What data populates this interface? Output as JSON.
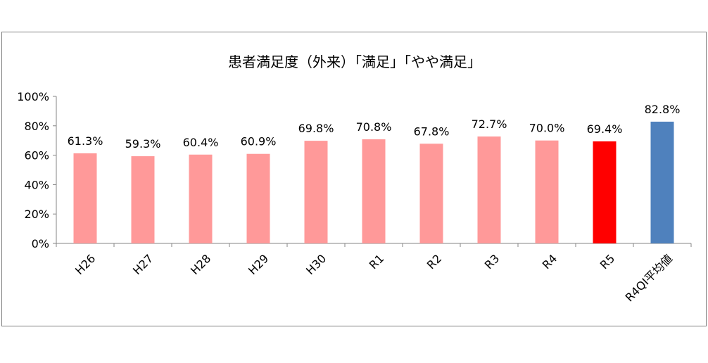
{
  "chart_data": {
    "type": "bar",
    "title": "患者満足度（外来）「満足」「やや満足」",
    "categories": [
      "H26",
      "H27",
      "H28",
      "H29",
      "H30",
      "R1",
      "R2",
      "R3",
      "R4",
      "R5",
      "R4QI平均値"
    ],
    "values": [
      61.3,
      59.3,
      60.4,
      60.9,
      69.8,
      70.8,
      67.8,
      72.7,
      70.0,
      69.4,
      82.8
    ],
    "data_labels": [
      "61.3%",
      "59.3%",
      "60.4%",
      "60.9%",
      "69.8%",
      "70.8%",
      "67.8%",
      "72.7%",
      "70.0%",
      "69.4%",
      "82.8%"
    ],
    "colors": [
      "#ff9999",
      "#ff9999",
      "#ff9999",
      "#ff9999",
      "#ff9999",
      "#ff9999",
      "#ff9999",
      "#ff9999",
      "#ff9999",
      "#ff0000",
      "#4f81bd"
    ],
    "ylim": [
      0,
      100
    ],
    "yticks": [
      "0%",
      "20%",
      "40%",
      "60%",
      "80%",
      "100%"
    ],
    "grid": false,
    "legend": "none"
  }
}
